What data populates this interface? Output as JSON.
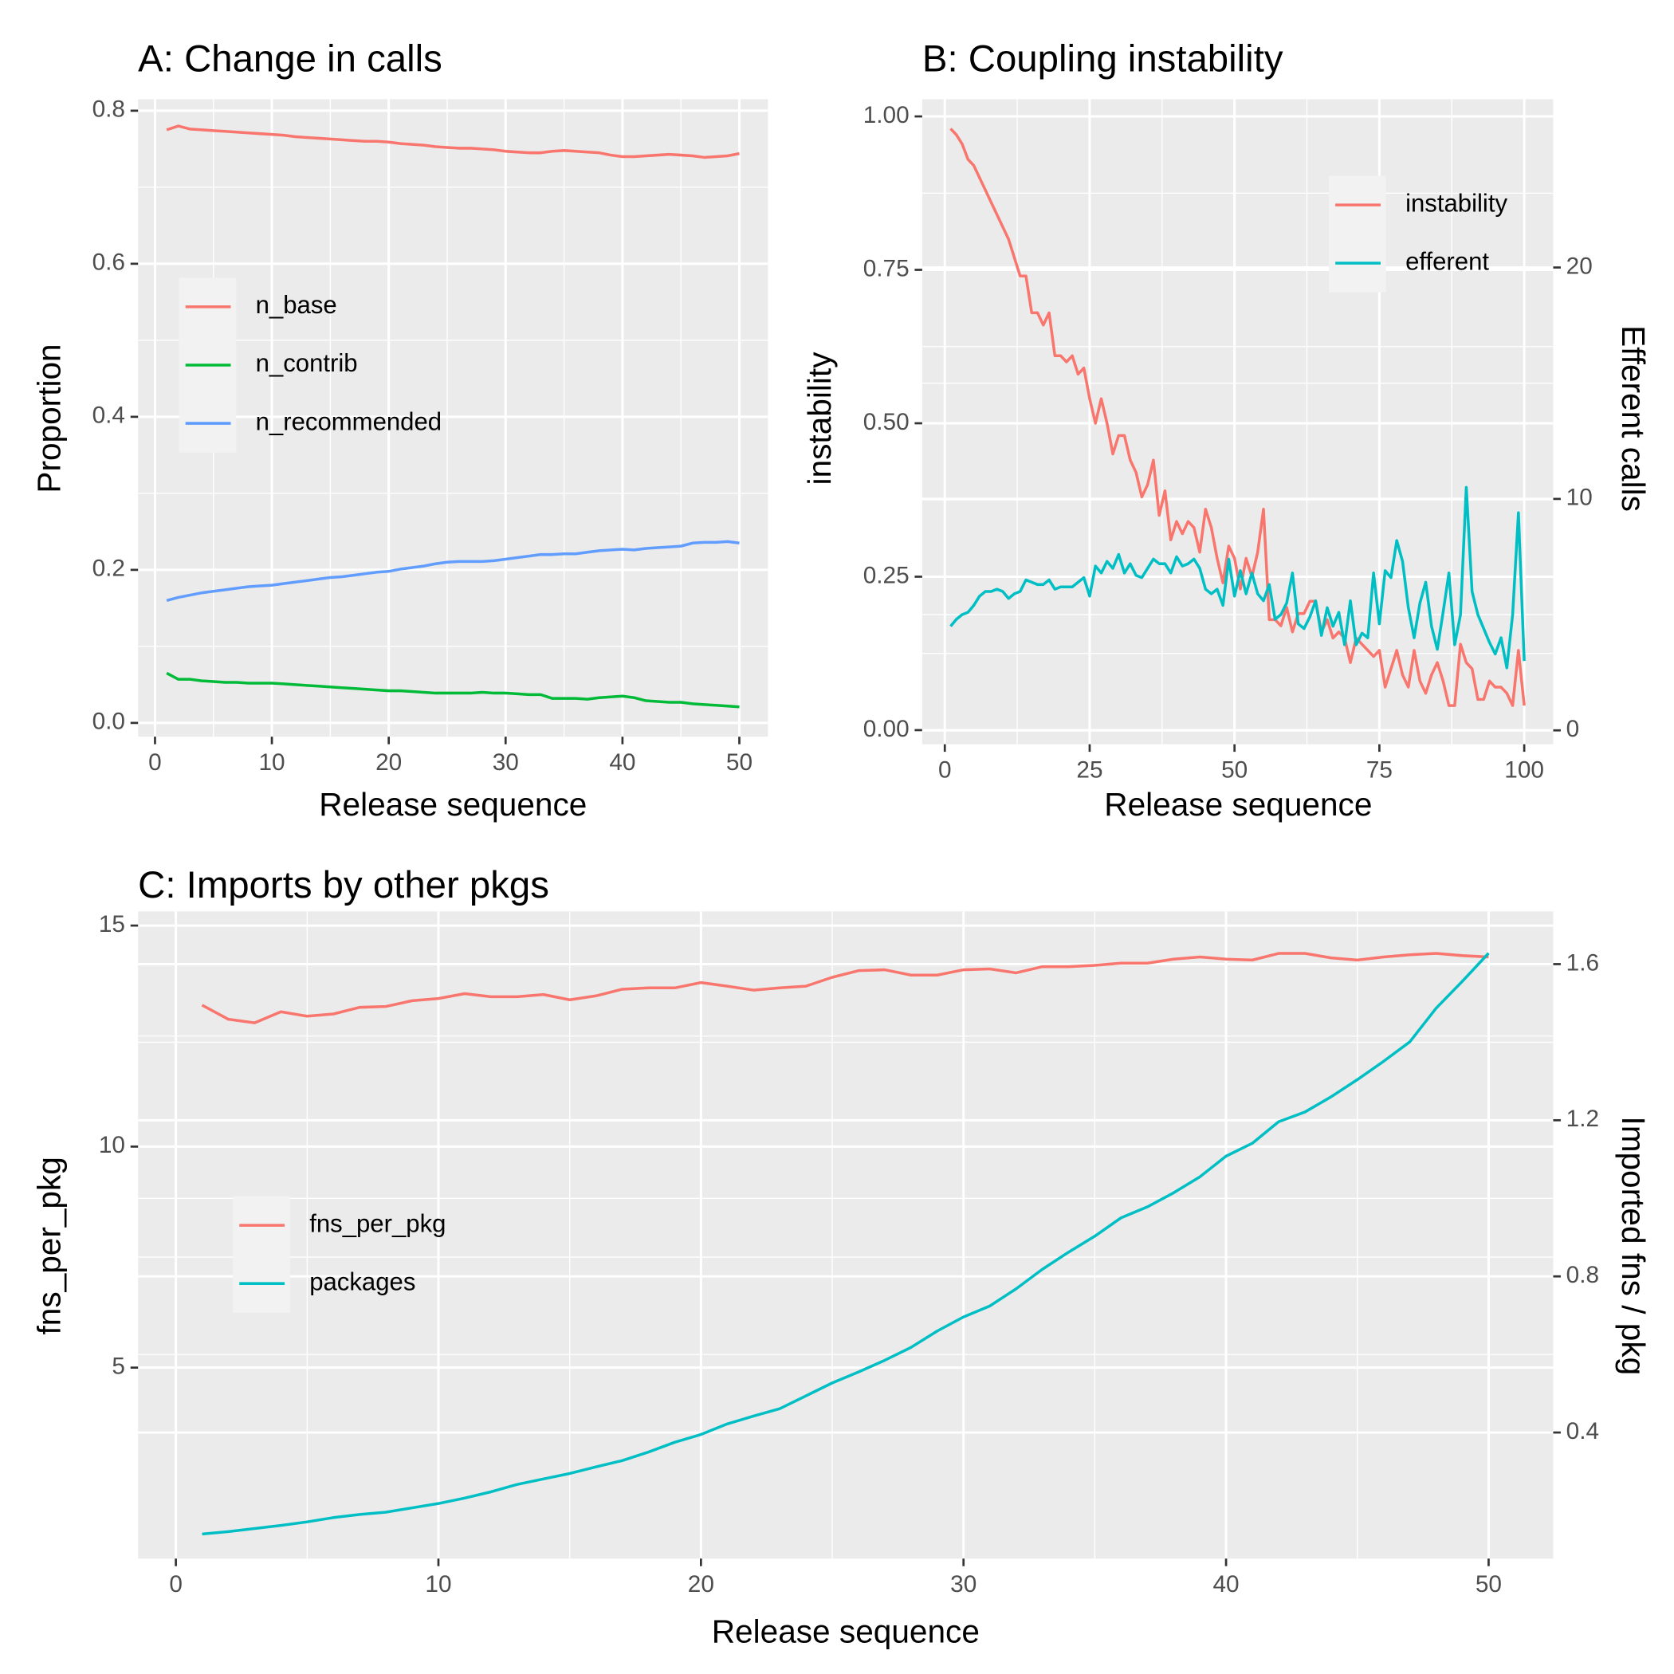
{
  "chart_data": [
    {
      "type": "line",
      "title": "A: Change in calls",
      "x_label": "Release sequence",
      "y_label": "Proportion",
      "x": [
        1,
        2,
        3,
        4,
        5,
        6,
        7,
        8,
        9,
        10,
        11,
        12,
        13,
        14,
        15,
        16,
        17,
        18,
        19,
        20,
        21,
        22,
        23,
        24,
        25,
        26,
        27,
        28,
        29,
        30,
        31,
        32,
        33,
        34,
        35,
        36,
        37,
        38,
        39,
        40,
        41,
        42,
        43,
        44,
        45,
        46,
        47,
        48,
        49,
        50
      ],
      "series": [
        {
          "name": "n_base",
          "color": "#F8766D",
          "values": [
            0.775,
            0.78,
            0.776,
            0.775,
            0.774,
            0.773,
            0.772,
            0.771,
            0.77,
            0.769,
            0.768,
            0.766,
            0.765,
            0.764,
            0.763,
            0.762,
            0.761,
            0.76,
            0.76,
            0.759,
            0.757,
            0.756,
            0.755,
            0.753,
            0.752,
            0.751,
            0.751,
            0.75,
            0.749,
            0.747,
            0.746,
            0.745,
            0.745,
            0.747,
            0.748,
            0.747,
            0.746,
            0.745,
            0.742,
            0.74,
            0.74,
            0.741,
            0.742,
            0.743,
            0.742,
            0.741,
            0.739,
            0.74,
            0.741,
            0.744
          ]
        },
        {
          "name": "n_contrib",
          "color": "#00BA38",
          "values": [
            0.065,
            0.057,
            0.057,
            0.055,
            0.054,
            0.053,
            0.053,
            0.052,
            0.052,
            0.052,
            0.051,
            0.05,
            0.049,
            0.048,
            0.047,
            0.046,
            0.045,
            0.044,
            0.043,
            0.042,
            0.042,
            0.041,
            0.04,
            0.039,
            0.039,
            0.039,
            0.039,
            0.04,
            0.039,
            0.039,
            0.038,
            0.037,
            0.037,
            0.032,
            0.032,
            0.032,
            0.031,
            0.033,
            0.034,
            0.035,
            0.033,
            0.029,
            0.028,
            0.027,
            0.027,
            0.025,
            0.024,
            0.023,
            0.022,
            0.021
          ]
        },
        {
          "name": "n_recommended",
          "color": "#619CFF",
          "values": [
            0.16,
            0.164,
            0.167,
            0.17,
            0.172,
            0.174,
            0.176,
            0.178,
            0.179,
            0.18,
            0.182,
            0.184,
            0.186,
            0.188,
            0.19,
            0.191,
            0.193,
            0.195,
            0.197,
            0.198,
            0.201,
            0.203,
            0.205,
            0.208,
            0.21,
            0.211,
            0.211,
            0.211,
            0.212,
            0.214,
            0.216,
            0.218,
            0.22,
            0.22,
            0.221,
            0.221,
            0.223,
            0.225,
            0.226,
            0.227,
            0.226,
            0.228,
            0.229,
            0.23,
            0.231,
            0.235,
            0.236,
            0.236,
            0.237,
            0.235
          ]
        }
      ],
      "xlim": [
        -1.45,
        52.45
      ],
      "xticks": [
        0,
        10,
        20,
        30,
        40,
        50
      ],
      "ylim": [
        -0.018,
        0.815
      ],
      "yticks": [
        {
          "value": 0,
          "label": "0.0"
        },
        0.2,
        0.4,
        0.6,
        0.8
      ],
      "grid": true,
      "legend": "center-left"
    },
    {
      "type": "line",
      "title": "B: Coupling instability",
      "x_label": "Release sequence",
      "y_label": "instability",
      "y2_label": "Efferent calls",
      "x": [
        1,
        2,
        3,
        4,
        5,
        6,
        7,
        8,
        9,
        10,
        11,
        12,
        13,
        14,
        15,
        16,
        17,
        18,
        19,
        20,
        21,
        22,
        23,
        24,
        25,
        26,
        27,
        28,
        29,
        30,
        31,
        32,
        33,
        34,
        35,
        36,
        37,
        38,
        39,
        40,
        41,
        42,
        43,
        44,
        45,
        46,
        47,
        48,
        49,
        50,
        51,
        52,
        53,
        54,
        55,
        56,
        57,
        58,
        59,
        60,
        61,
        62,
        63,
        64,
        65,
        66,
        67,
        68,
        69,
        70,
        71,
        72,
        73,
        74,
        75,
        76,
        77,
        78,
        79,
        80,
        81,
        82,
        83,
        84,
        85,
        86,
        87,
        88,
        89,
        90,
        91,
        92,
        93,
        94,
        95,
        96,
        97,
        98,
        99,
        100
      ],
      "series": [
        {
          "name": "instability",
          "color": "#F8766D",
          "values": [
            0.98,
            0.97,
            0.955,
            0.93,
            0.92,
            0.9,
            0.88,
            0.86,
            0.84,
            0.82,
            0.8,
            0.77,
            0.74,
            0.74,
            0.68,
            0.68,
            0.66,
            0.68,
            0.61,
            0.61,
            0.6,
            0.61,
            0.58,
            0.59,
            0.54,
            0.5,
            0.54,
            0.5,
            0.45,
            0.48,
            0.48,
            0.44,
            0.42,
            0.38,
            0.4,
            0.44,
            0.35,
            0.39,
            0.31,
            0.34,
            0.32,
            0.34,
            0.33,
            0.29,
            0.36,
            0.33,
            0.28,
            0.24,
            0.3,
            0.28,
            0.23,
            0.28,
            0.25,
            0.29,
            0.36,
            0.18,
            0.18,
            0.17,
            0.2,
            0.16,
            0.19,
            0.19,
            0.21,
            0.21,
            0.16,
            0.18,
            0.15,
            0.16,
            0.15,
            0.11,
            0.15,
            0.14,
            0.13,
            0.12,
            0.13,
            0.07,
            0.1,
            0.13,
            0.09,
            0.07,
            0.13,
            0.08,
            0.06,
            0.09,
            0.11,
            0.08,
            0.04,
            0.04,
            0.14,
            0.11,
            0.1,
            0.05,
            0.05,
            0.08,
            0.07,
            0.07,
            0.06,
            0.04,
            0.13,
            0.04
          ]
        },
        {
          "name": "efferent",
          "color": "#00BFC4",
          "axis": "y2",
          "values": [
            4.5,
            4.8,
            5.0,
            5.1,
            5.4,
            5.8,
            6.0,
            6.0,
            6.1,
            6.0,
            5.7,
            5.9,
            6.0,
            6.5,
            6.4,
            6.3,
            6.3,
            6.5,
            6.1,
            6.2,
            6.2,
            6.2,
            6.4,
            6.6,
            5.8,
            7.1,
            6.8,
            7.3,
            7.0,
            7.6,
            6.8,
            7.2,
            6.7,
            6.6,
            7.0,
            7.4,
            7.2,
            7.2,
            6.8,
            7.5,
            7.1,
            7.2,
            7.4,
            7.0,
            6.1,
            5.9,
            6.1,
            5.4,
            7.4,
            5.8,
            6.9,
            5.9,
            6.8,
            5.9,
            5.6,
            6.3,
            4.8,
            5.0,
            5.5,
            6.8,
            4.6,
            4.4,
            4.9,
            5.6,
            4.1,
            5.3,
            4.5,
            5.1,
            3.7,
            5.6,
            3.7,
            4.2,
            4.0,
            6.8,
            4.6,
            6.9,
            6.6,
            8.2,
            7.3,
            5.3,
            4.0,
            5.5,
            6.4,
            4.5,
            3.5,
            5.1,
            6.8,
            3.7,
            5.0,
            10.5,
            6.0,
            5.0,
            4.4,
            3.8,
            3.3,
            4.0,
            2.7,
            5.0,
            9.4,
            3.0
          ]
        }
      ],
      "xlim": [
        -3.9,
        105
      ],
      "xticks": [
        0,
        25,
        50,
        75,
        100
      ],
      "ylim": [
        -0.023,
        1.028
      ],
      "yticks": [
        {
          "value": 0,
          "label": "0.00"
        },
        0.25,
        {
          "value": 0.5,
          "label": "0.50"
        },
        0.75,
        {
          "value": 1,
          "label": "1.00"
        }
      ],
      "y2lim": [
        -0.6,
        27.27
      ],
      "y2ticks": [
        0,
        10,
        20
      ],
      "grid": true,
      "legend": "top-right"
    },
    {
      "type": "line",
      "title": "C: Imports by other pkgs",
      "x_label": "Release sequence",
      "y_label": "fns_per_pkg",
      "y2_label": "Imported fns / pkg",
      "x": [
        1,
        2,
        3,
        4,
        5,
        6,
        7,
        8,
        9,
        10,
        11,
        12,
        13,
        14,
        15,
        16,
        17,
        18,
        19,
        20,
        21,
        22,
        23,
        24,
        25,
        26,
        27,
        28,
        29,
        30,
        31,
        32,
        33,
        34,
        35,
        36,
        37,
        38,
        39,
        40,
        41,
        42,
        43,
        44,
        45,
        46,
        47,
        48,
        49,
        50
      ],
      "series": [
        {
          "name": "fns_per_pkg",
          "color": "#F8766D",
          "values": [
            13.2,
            12.88,
            12.8,
            13.05,
            12.95,
            13.0,
            13.15,
            13.17,
            13.3,
            13.35,
            13.46,
            13.39,
            13.39,
            13.44,
            13.32,
            13.41,
            13.56,
            13.59,
            13.59,
            13.71,
            13.63,
            13.54,
            13.59,
            13.63,
            13.83,
            13.98,
            14.0,
            13.88,
            13.88,
            14.0,
            14.02,
            13.93,
            14.07,
            14.07,
            14.1,
            14.15,
            14.15,
            14.24,
            14.29,
            14.24,
            14.22,
            14.37,
            14.37,
            14.27,
            14.22,
            14.29,
            14.34,
            14.37,
            14.32,
            14.29
          ]
        },
        {
          "name": "packages",
          "color": "#00BFC4",
          "axis": "y2",
          "values": [
            0.14,
            0.146,
            0.154,
            0.162,
            0.171,
            0.182,
            0.19,
            0.196,
            0.207,
            0.218,
            0.232,
            0.248,
            0.267,
            0.281,
            0.295,
            0.312,
            0.328,
            0.35,
            0.375,
            0.395,
            0.422,
            0.442,
            0.461,
            0.494,
            0.527,
            0.555,
            0.585,
            0.618,
            0.66,
            0.696,
            0.724,
            0.768,
            0.818,
            0.862,
            0.903,
            0.95,
            0.978,
            1.014,
            1.055,
            1.108,
            1.141,
            1.196,
            1.221,
            1.26,
            1.304,
            1.351,
            1.401,
            1.487,
            1.556,
            1.628
          ]
        }
      ],
      "xlim": [
        -1.44,
        52.46
      ],
      "xticks": [
        0,
        10,
        20,
        30,
        40,
        50
      ],
      "ylim": [
        0.68,
        15.32
      ],
      "yticks": [
        5,
        10,
        15
      ],
      "y2lim": [
        0.077,
        1.735
      ],
      "y2ticks": [
        0.4,
        0.8,
        1.2,
        1.6
      ],
      "grid": true,
      "legend": "center-left"
    }
  ]
}
